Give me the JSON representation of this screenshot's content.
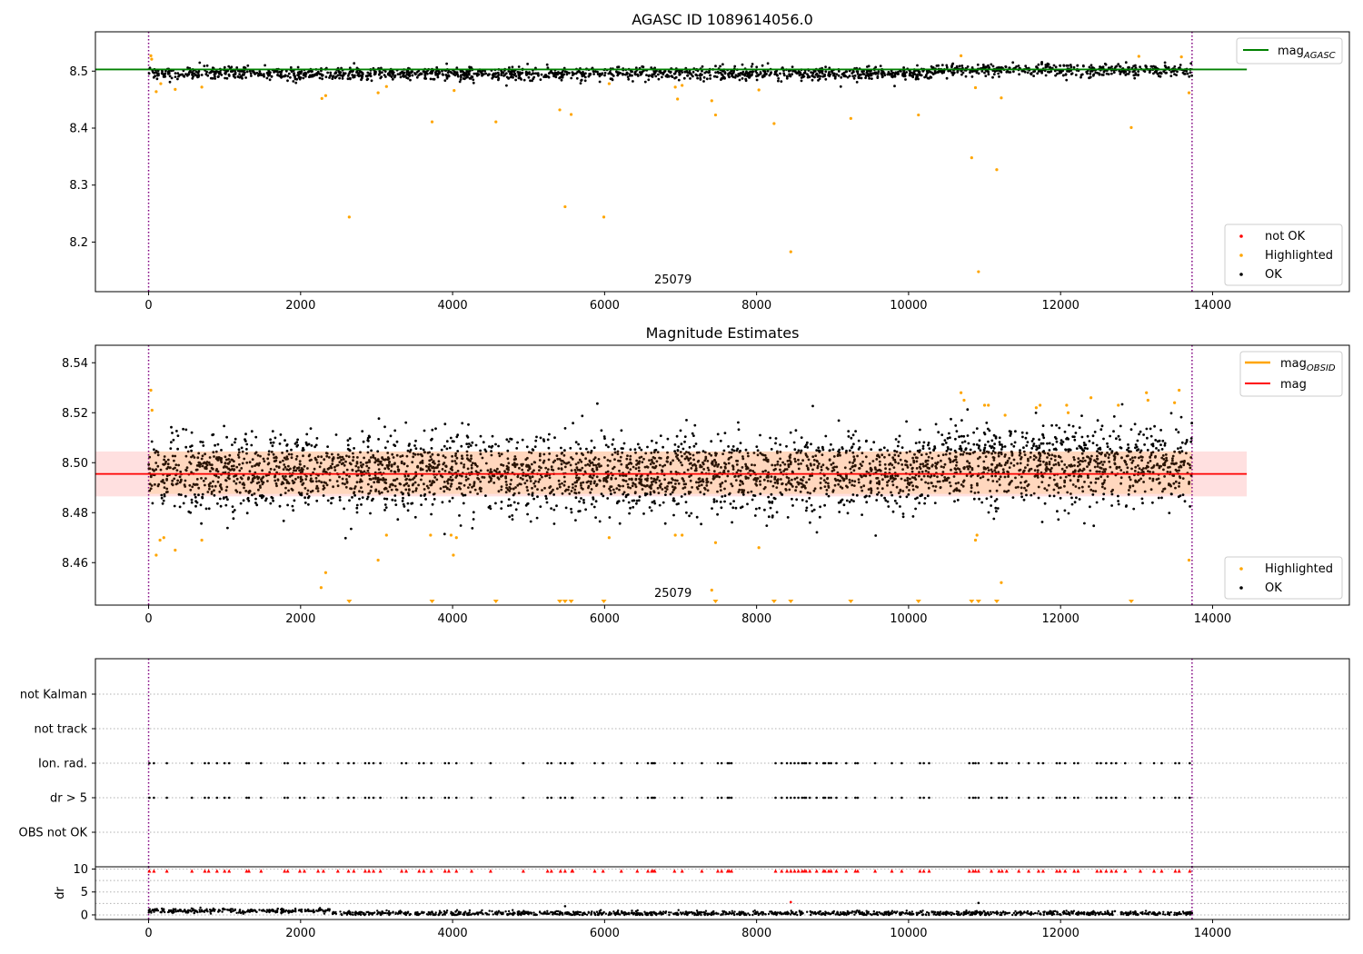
{
  "chart_data": [
    {
      "type": "scatter",
      "title": "AGASC ID 1089614056.0",
      "xlim": [
        -700,
        15800
      ],
      "ylim": [
        8.113,
        8.569
      ],
      "xticks": [
        "0",
        "2000",
        "4000",
        "6000",
        "8000",
        "10000",
        "12000",
        "14000"
      ],
      "yticks": [
        "8.2",
        "8.3",
        "8.4",
        "8.5"
      ],
      "obsid_label": "25079",
      "obsid_label_x": 6900,
      "obs_boundaries": [
        0,
        13730
      ],
      "agasc_line": {
        "y": 8.503,
        "x_range": [
          -700,
          14450
        ]
      },
      "series": [
        {
          "name": "OK",
          "mean": 8.496,
          "n": 1800,
          "x_range": [
            0,
            13730
          ]
        },
        {
          "name": "Highlighted",
          "points": [
            [
              30,
              8.527
            ],
            [
              40,
              8.521
            ],
            [
              100,
              8.464
            ],
            [
              160,
              8.478
            ],
            [
              350,
              8.468
            ],
            [
              700,
              8.472
            ],
            [
              2280,
              8.452
            ],
            [
              2330,
              8.457
            ],
            [
              2640,
              8.244
            ],
            [
              3020,
              8.462
            ],
            [
              3130,
              8.473
            ],
            [
              3730,
              8.411
            ],
            [
              4020,
              8.466
            ],
            [
              4570,
              8.411
            ],
            [
              5410,
              8.432
            ],
            [
              5480,
              8.262
            ],
            [
              5560,
              8.424
            ],
            [
              5990,
              8.244
            ],
            [
              6060,
              8.478
            ],
            [
              6930,
              8.472
            ],
            [
              6960,
              8.451
            ],
            [
              7020,
              8.475
            ],
            [
              7410,
              8.448
            ],
            [
              7460,
              8.423
            ],
            [
              8030,
              8.467
            ],
            [
              8230,
              8.408
            ],
            [
              8450,
              8.183
            ],
            [
              9240,
              8.417
            ],
            [
              10130,
              8.423
            ],
            [
              10690,
              8.527
            ],
            [
              10830,
              8.348
            ],
            [
              10880,
              8.471
            ],
            [
              10920,
              8.148
            ],
            [
              11160,
              8.327
            ],
            [
              11220,
              8.453
            ],
            [
              12930,
              8.401
            ],
            [
              13030,
              8.526
            ],
            [
              13590,
              8.525
            ],
            [
              13690,
              8.462
            ]
          ]
        },
        {
          "name": "not OK",
          "points": []
        }
      ],
      "legend_upper": [
        "mag_AGASC"
      ],
      "legend_lower": [
        "not OK",
        "Highlighted",
        "OK"
      ]
    },
    {
      "type": "scatter",
      "title": "Magnitude Estimates",
      "xlim": [
        -700,
        15800
      ],
      "ylim": [
        8.443,
        8.547
      ],
      "xticks": [
        "0",
        "2000",
        "4000",
        "6000",
        "8000",
        "10000",
        "12000",
        "14000"
      ],
      "yticks": [
        "8.46",
        "8.48",
        "8.50",
        "8.52",
        "8.54"
      ],
      "obsid_label": "25079",
      "obsid_label_x": 6900,
      "obs_boundaries": [
        0,
        13730
      ],
      "mag_line": {
        "y": 8.4955,
        "x_range": [
          -700,
          14450
        ],
        "band": [
          8.4865,
          8.5045
        ]
      },
      "mag_obsid_band": {
        "y": [
          8.4875,
          8.5045
        ],
        "x_range": [
          0,
          13730
        ]
      },
      "series": [
        {
          "name": "OK",
          "mean": 8.4955,
          "n": 3600,
          "x_range": [
            0,
            13730
          ]
        },
        {
          "name": "Highlighted",
          "points": [
            [
              30,
              8.529
            ],
            [
              45,
              8.521
            ],
            [
              100,
              8.463
            ],
            [
              150,
              8.469
            ],
            [
              200,
              8.47
            ],
            [
              350,
              8.465
            ],
            [
              700,
              8.469
            ],
            [
              2270,
              8.45
            ],
            [
              2330,
              8.456
            ],
            [
              3020,
              8.461
            ],
            [
              3130,
              8.471
            ],
            [
              3710,
              8.471
            ],
            [
              3980,
              8.471
            ],
            [
              4010,
              8.463
            ],
            [
              4050,
              8.47
            ],
            [
              6060,
              8.47
            ],
            [
              6930,
              8.471
            ],
            [
              7020,
              8.471
            ],
            [
              7410,
              8.449
            ],
            [
              7460,
              8.468
            ],
            [
              8030,
              8.466
            ],
            [
              10690,
              8.528
            ],
            [
              10730,
              8.525
            ],
            [
              10880,
              8.469
            ],
            [
              10900,
              8.471
            ],
            [
              11000,
              8.523
            ],
            [
              11050,
              8.523
            ],
            [
              11220,
              8.452
            ],
            [
              11270,
              8.519
            ],
            [
              11680,
              8.522
            ],
            [
              11730,
              8.523
            ],
            [
              12080,
              8.523
            ],
            [
              12100,
              8.52
            ],
            [
              12400,
              8.526
            ],
            [
              12760,
              8.523
            ],
            [
              13130,
              8.528
            ],
            [
              13150,
              8.525
            ],
            [
              13500,
              8.524
            ],
            [
              13560,
              8.529
            ],
            [
              13690,
              8.461
            ]
          ]
        }
      ],
      "out_of_range_markers_x": [
        2640,
        3730,
        4570,
        5410,
        5480,
        5560,
        5990,
        7460,
        8230,
        8450,
        9240,
        10130,
        10830,
        10920,
        11160,
        12930
      ],
      "legend_upper": [
        "mag_OBSID",
        "mag"
      ],
      "legend_lower": [
        "Highlighted",
        "OK"
      ]
    },
    {
      "type": "scatter",
      "title": "",
      "xlim": [
        -700,
        15800
      ],
      "categories": [
        "OBS not OK",
        "dr > 5",
        "Ion. rad.",
        "not track",
        "not Kalman"
      ],
      "flag_x": [
        10,
        70,
        240,
        570,
        740,
        790,
        900,
        1000,
        1060,
        1290,
        1320,
        1480,
        1790,
        1830,
        1990,
        2050,
        2230,
        2300,
        2490,
        2630,
        2700,
        2850,
        2900,
        2960,
        3050,
        3330,
        3390,
        3560,
        3620,
        3720,
        3900,
        3950,
        4050,
        4250,
        4500,
        4930,
        5250,
        5300,
        5420,
        5480,
        5570,
        5580,
        5870,
        5980,
        6220,
        6430,
        6570,
        6620,
        6640,
        6660,
        6920,
        7020,
        7280,
        7490,
        7540,
        7620,
        7640,
        7670,
        8250,
        8330,
        8400,
        8450,
        8500,
        8550,
        8600,
        8630,
        8650,
        8700,
        8790,
        8880,
        8900,
        8950,
        8980,
        9050,
        9180,
        9300,
        9330,
        9560,
        9780,
        9910,
        10150,
        10200,
        10270,
        10800,
        10850,
        10880,
        10920,
        11090,
        11190,
        11230,
        11290,
        11450,
        11580,
        11710,
        11770,
        11950,
        11990,
        12060,
        12180,
        12230,
        12480,
        12530,
        12600,
        12670,
        12730,
        12850,
        13050,
        13230,
        13330,
        13510,
        13560,
        13700
      ],
      "flag_rows": [
        "Ion. rad.",
        "dr > 5"
      ]
    },
    {
      "type": "scatter",
      "title": "",
      "ylabel": "dr",
      "xlim": [
        -700,
        15800
      ],
      "ylim": [
        -1,
        10.5
      ],
      "xticks": [
        "0",
        "2000",
        "4000",
        "6000",
        "8000",
        "10000",
        "12000",
        "14000"
      ],
      "yticks": [
        "0",
        "5",
        "10"
      ],
      "series": [
        {
          "name": "dr",
          "segments": [
            [
              0,
              2400,
              0.9
            ],
            [
              2400,
              13730,
              0.35
            ]
          ]
        },
        {
          "name": "dr outliers",
          "points": [
            [
              8450,
              2.8
            ],
            [
              10920,
              2.6
            ],
            [
              5480,
              1.9
            ]
          ]
        },
        {
          "name": "dr > 5 (clipped)",
          "y": 9.6
        }
      ]
    }
  ],
  "colors": {
    "ok": "#000000",
    "highlighted": "#ffa500",
    "not_ok": "#ff0000",
    "agasc_line": "#008000",
    "mag_line": "#ff0000",
    "mag_band": "#ff0000",
    "mag_obsid_band": "#ffa500",
    "boundary": "#800080",
    "grid": "#b0b0b0"
  }
}
